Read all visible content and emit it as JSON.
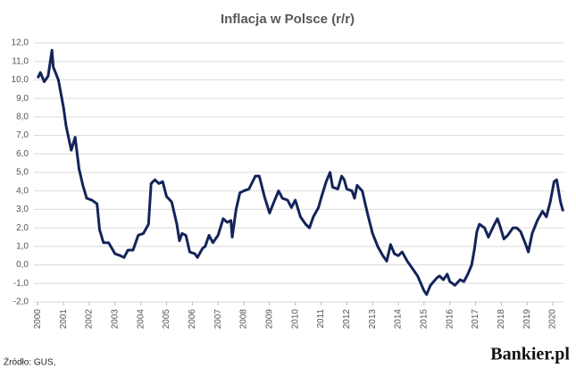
{
  "chart_data": {
    "type": "line",
    "title": "Inflacja w Polsce (r/r)",
    "source": "Źródło: GUS,",
    "brand": "Bankier.pl",
    "x": [
      2000.0,
      2000.1,
      2000.25,
      2000.4,
      2000.55,
      2000.6,
      2000.8,
      2001.0,
      2001.1,
      2001.3,
      2001.45,
      2001.6,
      2001.75,
      2001.9,
      2002.1,
      2002.3,
      2002.4,
      2002.55,
      2002.75,
      2003.0,
      2003.2,
      2003.35,
      2003.5,
      2003.7,
      2003.9,
      2004.1,
      2004.3,
      2004.4,
      2004.55,
      2004.7,
      2004.85,
      2005.0,
      2005.2,
      2005.4,
      2005.5,
      2005.6,
      2005.75,
      2005.9,
      2006.1,
      2006.2,
      2006.4,
      2006.5,
      2006.65,
      2006.8,
      2007.0,
      2007.2,
      2007.35,
      2007.5,
      2007.55,
      2007.7,
      2007.85,
      2008.0,
      2008.2,
      2008.45,
      2008.6,
      2008.8,
      2009.0,
      2009.2,
      2009.35,
      2009.5,
      2009.7,
      2009.85,
      2010.0,
      2010.2,
      2010.4,
      2010.55,
      2010.7,
      2010.9,
      2011.0,
      2011.2,
      2011.35,
      2011.45,
      2011.65,
      2011.8,
      2011.9,
      2012.0,
      2012.2,
      2012.3,
      2012.4,
      2012.6,
      2012.8,
      2013.0,
      2013.2,
      2013.4,
      2013.55,
      2013.7,
      2013.85,
      2014.0,
      2014.15,
      2014.35,
      2014.6,
      2014.75,
      2015.0,
      2015.1,
      2015.25,
      2015.5,
      2015.6,
      2015.75,
      2015.9,
      2016.0,
      2016.2,
      2016.4,
      2016.55,
      2016.7,
      2016.85,
      2016.95,
      2017.05,
      2017.15,
      2017.35,
      2017.5,
      2017.7,
      2017.85,
      2017.95,
      2018.1,
      2018.25,
      2018.45,
      2018.6,
      2018.75,
      2018.95,
      2019.05,
      2019.2,
      2019.4,
      2019.6,
      2019.75,
      2019.9,
      2020.05,
      2020.15,
      2020.3,
      2020.4
    ],
    "series": [
      {
        "name": "Inflacja r/r",
        "color": "#14245a",
        "values": [
          10.1,
          10.4,
          9.9,
          10.2,
          11.6,
          10.7,
          10.0,
          8.5,
          7.5,
          6.2,
          6.9,
          5.2,
          4.3,
          3.6,
          3.5,
          3.3,
          1.9,
          1.2,
          1.2,
          0.6,
          0.5,
          0.4,
          0.8,
          0.8,
          1.6,
          1.7,
          2.2,
          4.4,
          4.6,
          4.4,
          4.5,
          3.7,
          3.4,
          2.2,
          1.3,
          1.7,
          1.6,
          0.7,
          0.6,
          0.4,
          0.9,
          1.0,
          1.6,
          1.2,
          1.6,
          2.5,
          2.3,
          2.4,
          1.5,
          3.0,
          3.9,
          4.0,
          4.1,
          4.8,
          4.8,
          3.7,
          2.8,
          3.5,
          4.0,
          3.6,
          3.5,
          3.1,
          3.5,
          2.6,
          2.2,
          2.0,
          2.6,
          3.1,
          3.6,
          4.5,
          5.0,
          4.2,
          4.1,
          4.8,
          4.6,
          4.1,
          4.0,
          3.6,
          4.3,
          4.0,
          2.8,
          1.7,
          1.0,
          0.5,
          0.2,
          1.1,
          0.6,
          0.5,
          0.7,
          0.2,
          -0.3,
          -0.6,
          -1.4,
          -1.6,
          -1.1,
          -0.7,
          -0.6,
          -0.8,
          -0.5,
          -0.9,
          -1.1,
          -0.8,
          -0.9,
          -0.5,
          0.0,
          0.8,
          1.8,
          2.2,
          2.0,
          1.5,
          2.1,
          2.5,
          2.1,
          1.4,
          1.6,
          2.0,
          2.0,
          1.8,
          1.1,
          0.7,
          1.7,
          2.4,
          2.9,
          2.6,
          3.4,
          4.5,
          4.6,
          3.4,
          2.9
        ]
      }
    ],
    "xlim": [
      1999.85,
      2020.45
    ],
    "xticks": [
      2000,
      2001,
      2002,
      2003,
      2004,
      2005,
      2006,
      2007,
      2008,
      2009,
      2010,
      2011,
      2012,
      2013,
      2014,
      2015,
      2016,
      2017,
      2018,
      2019,
      2020
    ],
    "ylim": [
      -2,
      12
    ],
    "yticks": [
      {
        "value": -2,
        "label": "-2,0"
      },
      {
        "value": -1,
        "label": "-1,0"
      },
      {
        "value": 0,
        "label": "0,0"
      },
      {
        "value": 1,
        "label": "1,0"
      },
      {
        "value": 2,
        "label": "2,0"
      },
      {
        "value": 3,
        "label": "3,0"
      },
      {
        "value": 4,
        "label": "4,0"
      },
      {
        "value": 5,
        "label": "5,0"
      },
      {
        "value": 6,
        "label": "6,0"
      },
      {
        "value": 7,
        "label": "7,0"
      },
      {
        "value": 8,
        "label": "8,0"
      },
      {
        "value": 9,
        "label": "9,0"
      },
      {
        "value": 10,
        "label": "10,0"
      },
      {
        "value": 11,
        "label": "11,0"
      },
      {
        "value": 12,
        "label": "12,0"
      }
    ],
    "grid": true
  }
}
